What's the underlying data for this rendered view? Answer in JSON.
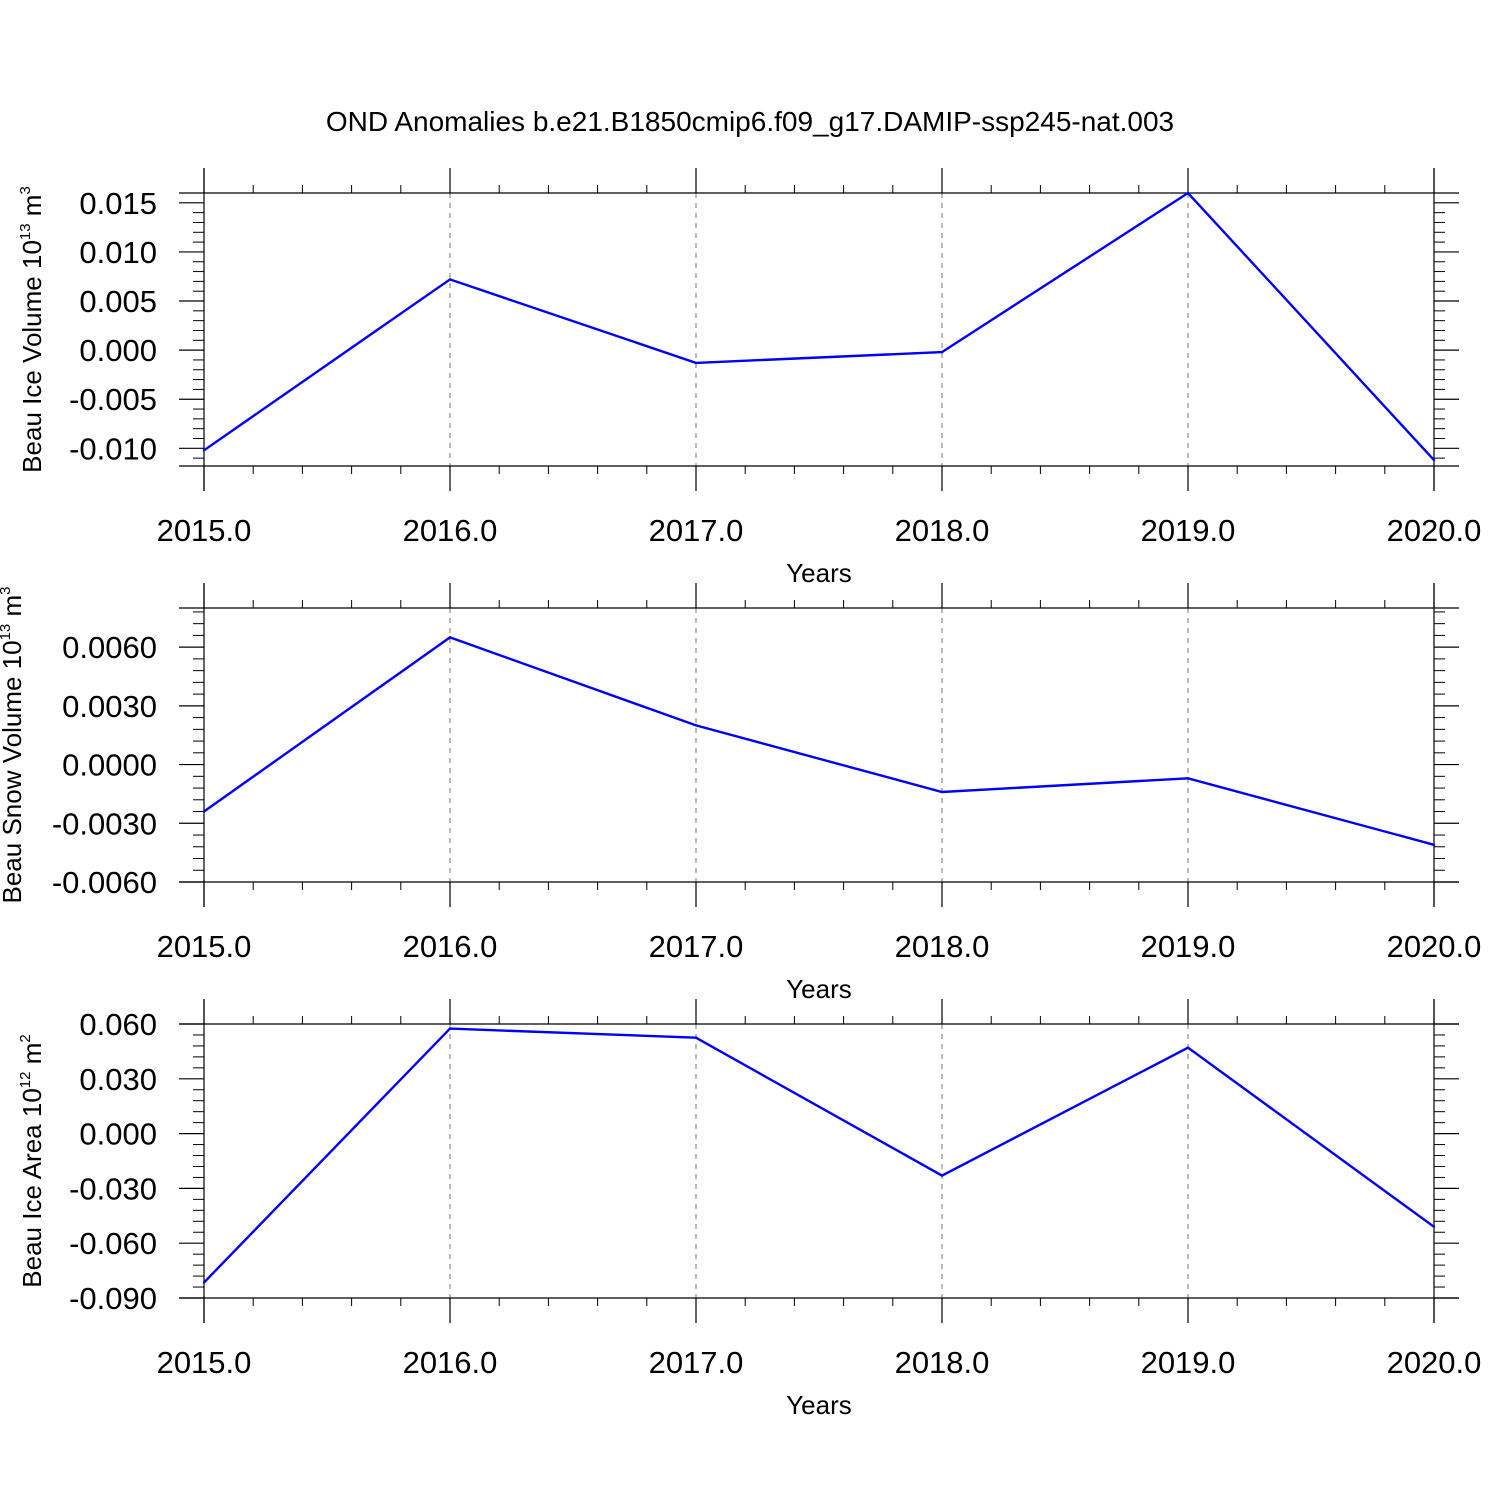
{
  "title": "OND Anomalies b.e21.B1850cmip6.f09_g17.DAMIP-ssp245-nat.003",
  "line_color": "#0000ff",
  "chart_data": [
    {
      "type": "line",
      "title": "OND Anomalies b.e21.B1850cmip6.f09_g17.DAMIP-ssp245-nat.003",
      "ylabel": {
        "text": "Beau Ice Volume 10",
        "sup1": "13",
        "mid": " m",
        "sup2": "3"
      },
      "xlabel": "Years",
      "x": [
        2015,
        2016,
        2017,
        2018,
        2019,
        2020
      ],
      "y": [
        -0.0102,
        0.0072,
        -0.0013,
        -0.0002,
        0.016,
        -0.0112
      ],
      "xlim": [
        2015,
        2020
      ],
      "ylim": [
        -0.0118,
        0.016
      ],
      "xticks": [
        2015,
        2016,
        2017,
        2018,
        2019,
        2020
      ],
      "xtick_labels": [
        "2015.0",
        "2016.0",
        "2017.0",
        "2018.0",
        "2019.0",
        "2020.0"
      ],
      "yticks": [
        -0.01,
        -0.005,
        0.0,
        0.005,
        0.01,
        0.015
      ],
      "ytick_labels": [
        "-0.010",
        "-0.005",
        "0.000",
        "0.005",
        "0.010",
        "0.015"
      ],
      "yminor_step": 0.001,
      "grid": "vertical dashed"
    },
    {
      "type": "line",
      "ylabel": {
        "text": "Beau Snow Volume 10",
        "sup1": "13",
        "mid": " m",
        "sup2": "3"
      },
      "xlabel": "Years",
      "x": [
        2015,
        2016,
        2017,
        2018,
        2019,
        2020
      ],
      "y": [
        -0.0024,
        0.0065,
        0.002,
        -0.0014,
        -0.0007,
        -0.0041
      ],
      "xlim": [
        2015,
        2020
      ],
      "ylim": [
        -0.006,
        0.008
      ],
      "xticks": [
        2015,
        2016,
        2017,
        2018,
        2019,
        2020
      ],
      "xtick_labels": [
        "2015.0",
        "2016.0",
        "2017.0",
        "2018.0",
        "2019.0",
        "2020.0"
      ],
      "yticks": [
        -0.006,
        -0.003,
        0.0,
        0.003,
        0.006
      ],
      "ytick_labels": [
        "-0.0060",
        "-0.0030",
        "0.0000",
        "0.0030",
        "0.0060"
      ],
      "yminor_step": 0.0006,
      "grid": "vertical dashed"
    },
    {
      "type": "line",
      "ylabel": {
        "text": "Beau Ice Area 10",
        "sup1": "12",
        "mid": " m",
        "sup2": "2"
      },
      "xlabel": "Years",
      "x": [
        2015,
        2016,
        2017,
        2018,
        2019,
        2020
      ],
      "y": [
        -0.0815,
        0.0575,
        0.0525,
        -0.023,
        0.047,
        -0.051
      ],
      "xlim": [
        2015,
        2020
      ],
      "ylim": [
        -0.09,
        0.06
      ],
      "xticks": [
        2015,
        2016,
        2017,
        2018,
        2019,
        2020
      ],
      "xtick_labels": [
        "2015.0",
        "2016.0",
        "2017.0",
        "2018.0",
        "2019.0",
        "2020.0"
      ],
      "yticks": [
        -0.09,
        -0.06,
        -0.03,
        0.0,
        0.03,
        0.06
      ],
      "ytick_labels": [
        "-0.090",
        "-0.060",
        "-0.030",
        "0.000",
        "0.030",
        "0.060"
      ],
      "yminor_step": 0.006,
      "grid": "vertical dashed"
    }
  ]
}
